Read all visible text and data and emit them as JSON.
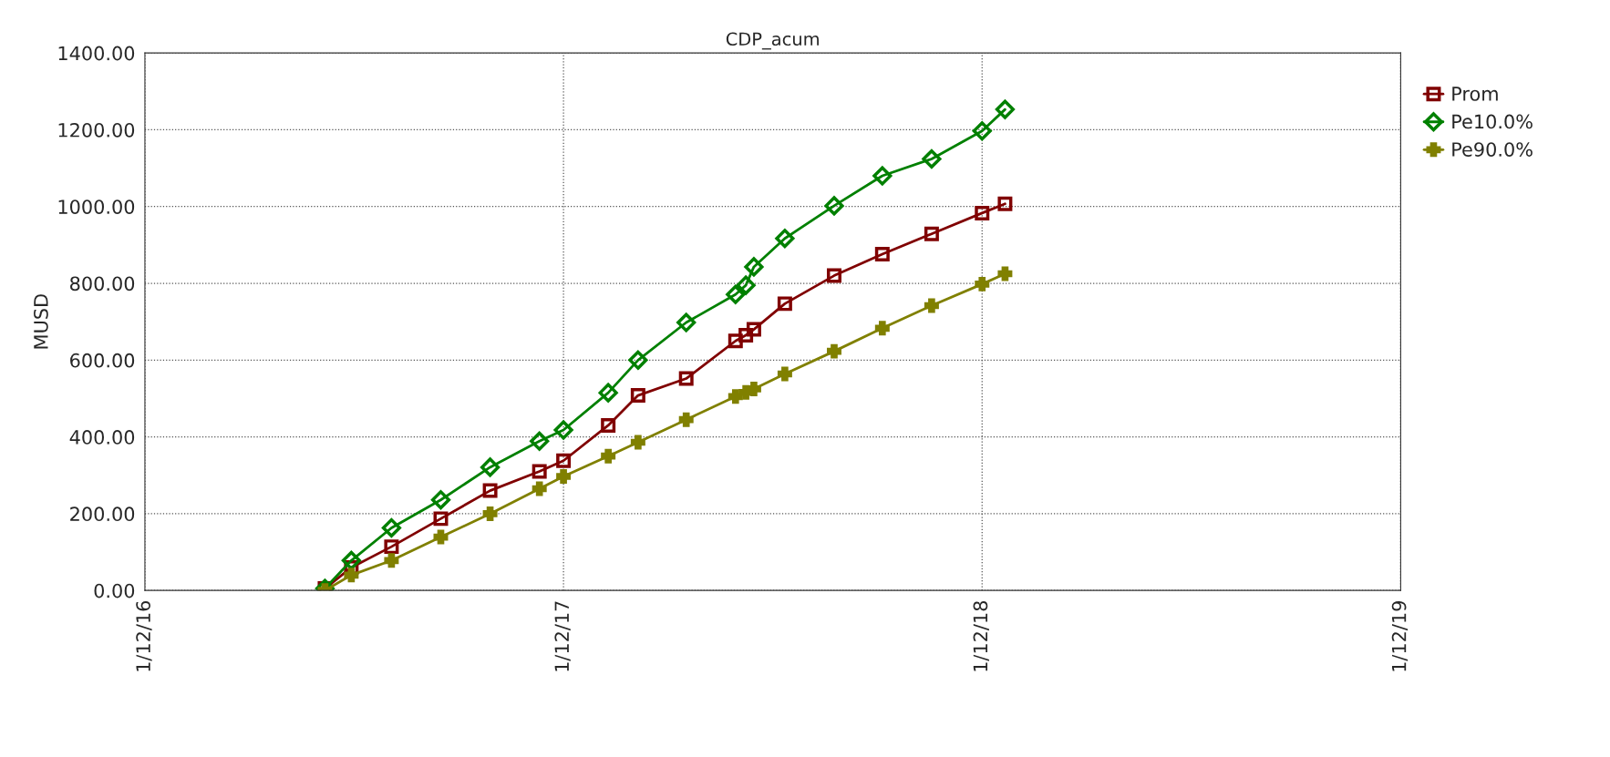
{
  "chart_data": {
    "type": "line",
    "title": "CDP_acum",
    "ylabel": "MUSD",
    "x": [
      "2017-05-07",
      "2017-05-30",
      "2017-07-04",
      "2017-08-16",
      "2017-09-28",
      "2017-11-10",
      "2017-12-01",
      "2018-01-09",
      "2018-02-04",
      "2018-03-18",
      "2018-04-30",
      "2018-05-09",
      "2018-05-16",
      "2018-06-12",
      "2018-07-25",
      "2018-09-05",
      "2018-10-18",
      "2018-12-01",
      "2018-12-21"
    ],
    "series": [
      {
        "name": "Prom",
        "color": "#800000",
        "marker": "square",
        "values": [
          5,
          60,
          114,
          187,
          260,
          310,
          338,
          430,
          508,
          552,
          650,
          665,
          680,
          747,
          820,
          876,
          929,
          983,
          1007
        ]
      },
      {
        "name": "Pe10.0%",
        "color": "#008000",
        "marker": "diamond",
        "values": [
          5,
          78,
          163,
          236,
          321,
          389,
          418,
          515,
          600,
          698,
          771,
          795,
          843,
          917,
          1002,
          1080,
          1124,
          1197,
          1253
        ]
      },
      {
        "name": "Pe90.0%",
        "color": "#808000",
        "marker": "cross",
        "values": [
          0,
          40,
          78,
          139,
          200,
          265,
          297,
          350,
          386,
          445,
          505,
          516,
          525,
          564,
          623,
          683,
          742,
          798,
          825
        ]
      }
    ],
    "xlim": [
      "2016-12-01",
      "2019-12-01"
    ],
    "xticks": [
      {
        "value": "2016-12-01",
        "label": "1/12/16"
      },
      {
        "value": "2017-12-01",
        "label": "1/12/17"
      },
      {
        "value": "2018-12-01",
        "label": "1/12/18"
      },
      {
        "value": "2019-12-01",
        "label": "1/12/19"
      }
    ],
    "ylim": [
      0,
      1400
    ],
    "yticks": [
      {
        "value": 0,
        "label": "0.00"
      },
      {
        "value": 200,
        "label": "200.00"
      },
      {
        "value": 400,
        "label": "400.00"
      },
      {
        "value": 600,
        "label": "600.00"
      },
      {
        "value": 800,
        "label": "800.00"
      },
      {
        "value": 1000,
        "label": "1000.00"
      },
      {
        "value": 1200,
        "label": "1200.00"
      },
      {
        "value": 1400,
        "label": "1400.00"
      }
    ],
    "grid": true,
    "legend": "top right"
  }
}
